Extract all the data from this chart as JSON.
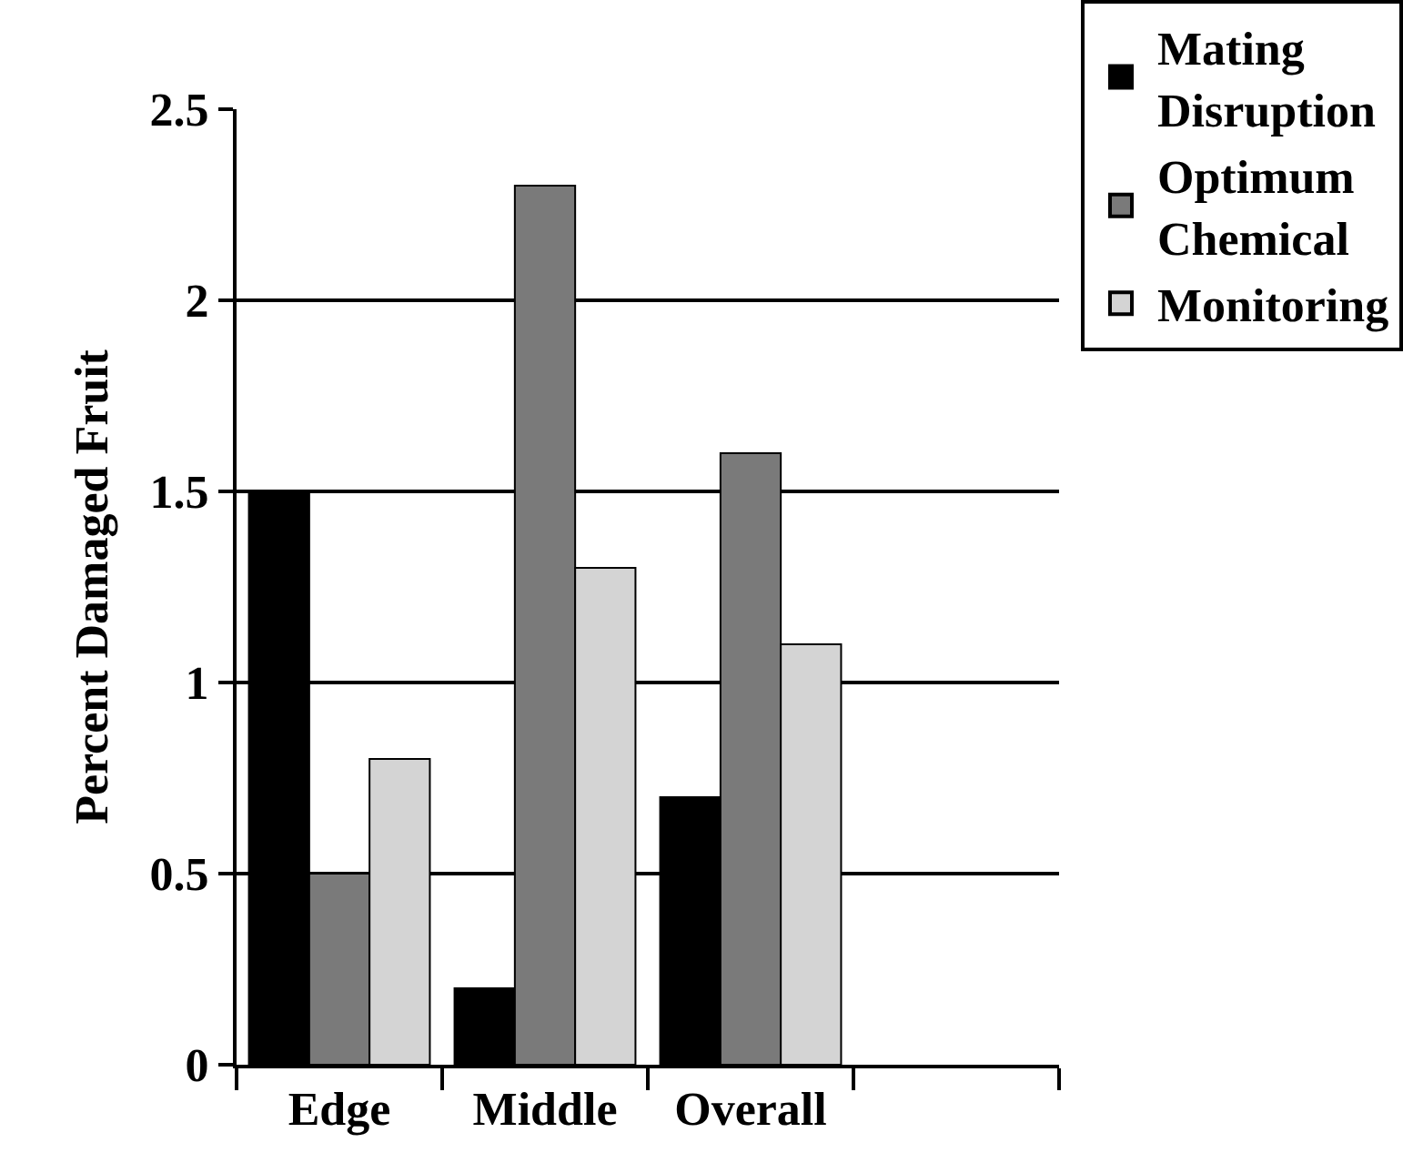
{
  "chart_data": {
    "type": "bar",
    "ylabel": "Percent Damaged Fruit",
    "categories": [
      "Edge",
      "Middle",
      "Overall",
      null
    ],
    "series": [
      {
        "name": "Mating Disruption",
        "color": "#000000",
        "values": [
          1.5,
          0.2,
          0.7,
          null
        ]
      },
      {
        "name": "Optimum Chemical",
        "color": "#7a7a7a",
        "values": [
          0.5,
          2.3,
          1.6,
          null
        ]
      },
      {
        "name": "Monitoring",
        "color": "#d4d4d4",
        "values": [
          0.8,
          1.3,
          1.1,
          null
        ]
      }
    ],
    "ylim": [
      0,
      2.5
    ],
    "yticks": [
      0,
      0.5,
      1,
      1.5,
      2,
      2.5
    ],
    "grid": "y",
    "legend": "top right"
  }
}
